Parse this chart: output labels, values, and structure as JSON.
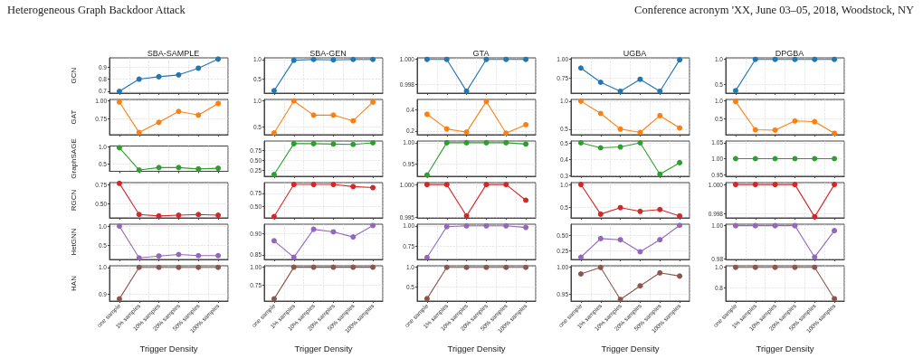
{
  "chart_data": [
    {
      "type": "line",
      "title": "SBA-SAMPLE",
      "ylabel": "GCN",
      "annotations": [
        "Heterogeneous Graph Backdoor Attack",
        "Conference acronym 'XX, June 03–05, 2018, Woodstock, NY"
      ],
      "categories": [
        null,
        null,
        null,
        null,
        null,
        null
      ],
      "series": [
        {
          "color": "#1f77b4",
          "values": [
            0.7,
            0.8,
            0.82,
            0.835,
            0.89,
            0.965
          ]
        }
      ],
      "ylim": [
        0.685,
        0.975
      ],
      "yticks": [
        0.7,
        0.8,
        0.9
      ],
      "grid": true,
      "marker": "circle",
      "tick_labels": "y"
    },
    {
      "type": "line",
      "title": "SBA-GEN",
      "categories": [
        null,
        null,
        null,
        null,
        null,
        null
      ],
      "series": [
        {
          "color": "#1f77b4",
          "values": [
            0.21,
            0.98,
            1.0,
            0.99,
            1.0,
            1.0
          ]
        }
      ],
      "ylim": [
        0.15,
        1.04
      ],
      "yticks": [
        0.5,
        {
          "value": 1,
          "label": "1.0"
        }
      ],
      "grid": true,
      "marker": "circle",
      "tick_labels": "y"
    },
    {
      "type": "line",
      "title": "GTA",
      "categories": [
        null,
        null,
        null,
        null,
        null,
        null
      ],
      "series": [
        {
          "color": "#1f77b4",
          "values": [
            1.0,
            1.0,
            0.99748,
            1.0,
            1.0,
            1.0
          ]
        }
      ],
      "ylim": [
        0.99733,
        1.00012
      ],
      "yticks": [
        0.998,
        {
          "value": 1,
          "label": "1.000"
        }
      ],
      "grid": true,
      "marker": "circle",
      "tick_labels": "y"
    },
    {
      "type": "line",
      "title": "UGBA",
      "categories": [
        null,
        null,
        null,
        null,
        null,
        null
      ],
      "series": [
        {
          "color": "#1f77b4",
          "values": [
            0.88,
            0.69,
            0.57,
            0.73,
            0.57,
            0.99
          ]
        }
      ],
      "ylim": [
        0.545,
        1.016
      ],
      "yticks": [
        0.75,
        {
          "value": 1,
          "label": "1.00"
        }
      ],
      "grid": true,
      "marker": "circle",
      "tick_labels": "y"
    },
    {
      "type": "line",
      "title": "DPGBA",
      "categories": [
        null,
        null,
        null,
        null,
        null,
        null
      ],
      "series": [
        {
          "color": "#1f77b4",
          "values": [
            0.38,
            1.0,
            1.0,
            1.0,
            1.0,
            1.0
          ]
        }
      ],
      "ylim": [
        0.333,
        1.03
      ],
      "yticks": [
        0.5,
        {
          "value": 1,
          "label": "1.0"
        }
      ],
      "grid": true,
      "marker": "circle",
      "tick_labels": "y"
    },
    {
      "type": "line",
      "ylabel": "GAT",
      "categories": [
        null,
        null,
        null,
        null,
        null,
        null
      ],
      "series": [
        {
          "color": "#ff7f0e",
          "values": [
            0.98,
            0.56,
            0.7,
            0.85,
            0.8,
            0.96
          ]
        }
      ],
      "ylim": [
        0.53,
        1.015
      ],
      "yticks": [
        0.75,
        {
          "value": 1,
          "label": "1.00"
        }
      ],
      "grid": true,
      "marker": "circle",
      "tick_labels": "y"
    },
    {
      "type": "line",
      "categories": [
        null,
        null,
        null,
        null,
        null,
        null
      ],
      "series": [
        {
          "color": "#ff7f0e",
          "values": [
            0.39,
            1.0,
            0.73,
            0.73,
            0.62,
            0.98
          ]
        }
      ],
      "ylim": [
        0.355,
        1.03
      ],
      "yticks": [
        0.5,
        {
          "value": 1,
          "label": "1.0"
        }
      ],
      "grid": true,
      "marker": "circle",
      "tick_labels": "y"
    },
    {
      "type": "line",
      "categories": [
        null,
        null,
        null,
        null,
        null,
        null
      ],
      "series": [
        {
          "color": "#ff7f0e",
          "values": [
            0.36,
            0.22,
            0.19,
            0.48,
            0.18,
            0.26
          ]
        }
      ],
      "ylim": [
        0.165,
        0.5
      ],
      "yticks": [
        0.2,
        0.4
      ],
      "grid": true,
      "marker": "circle",
      "tick_labels": "y"
    },
    {
      "type": "line",
      "categories": [
        null,
        null,
        null,
        null,
        null,
        null
      ],
      "series": [
        {
          "color": "#ff7f0e",
          "values": [
            1.0,
            0.78,
            0.5,
            0.44,
            0.74,
            0.52
          ]
        }
      ],
      "ylim": [
        0.4,
        1.03
      ],
      "yticks": [
        0.5,
        {
          "value": 1,
          "label": "1.0"
        }
      ],
      "grid": true,
      "marker": "circle",
      "tick_labels": "y"
    },
    {
      "type": "line",
      "categories": [
        null,
        null,
        null,
        null,
        null,
        null
      ],
      "series": [
        {
          "color": "#ff7f0e",
          "values": [
            0.98,
            0.18,
            0.17,
            0.43,
            0.41,
            0.08
          ]
        }
      ],
      "ylim": [
        0.04,
        1.04
      ],
      "yticks": [
        0.5,
        {
          "value": 1,
          "label": "1.0"
        }
      ],
      "grid": true,
      "marker": "circle",
      "tick_labels": "y"
    },
    {
      "type": "line",
      "ylabel": "GraphSAGE",
      "categories": [
        null,
        null,
        null,
        null,
        null,
        null
      ],
      "series": [
        {
          "color": "#2ca02c",
          "values": [
            0.98,
            0.33,
            0.4,
            0.4,
            0.36,
            0.38
          ]
        }
      ],
      "ylim": [
        0.29,
        1.03
      ],
      "yticks": [
        0.5,
        {
          "value": 1,
          "label": "1.0"
        }
      ],
      "grid": true,
      "marker": "circle",
      "tick_labels": "y"
    },
    {
      "type": "line",
      "categories": [
        null,
        null,
        null,
        null,
        null,
        null
      ],
      "series": [
        {
          "color": "#2ca02c",
          "values": [
            0.15,
            0.92,
            0.92,
            0.91,
            0.9,
            0.94
          ]
        }
      ],
      "ylim": [
        0.106,
        0.985
      ],
      "yticks": [
        {
          "value": 0.25,
          "label": "0.25"
        },
        {
          "value": 0.5,
          "label": "0.50"
        },
        {
          "value": 0.75,
          "label": "0.75"
        }
      ],
      "grid": true,
      "marker": "circle",
      "tick_labels": "y"
    },
    {
      "type": "line",
      "categories": [
        null,
        null,
        null,
        null,
        null,
        null
      ],
      "series": [
        {
          "color": "#2ca02c",
          "values": [
            0.925,
            1.0,
            1.0,
            1.0,
            1.0,
            0.997
          ]
        }
      ],
      "ylim": [
        0.922,
        1.004
      ],
      "yticks": [
        0.95,
        {
          "value": 1,
          "label": "1.00"
        }
      ],
      "grid": true,
      "marker": "circle",
      "tick_labels": "y"
    },
    {
      "type": "line",
      "categories": [
        null,
        null,
        null,
        null,
        null,
        null
      ],
      "series": [
        {
          "color": "#2ca02c",
          "values": [
            0.5,
            0.47,
            0.475,
            0.5,
            0.31,
            0.38
          ]
        }
      ],
      "ylim": [
        0.298,
        0.511
      ],
      "yticks": [
        0.3,
        0.4,
        0.5
      ],
      "grid": true,
      "marker": "circle",
      "tick_labels": "y"
    },
    {
      "type": "line",
      "categories": [
        null,
        null,
        null,
        null,
        null,
        null
      ],
      "series": [
        {
          "color": "#2ca02c",
          "values": [
            1.0,
            1.0,
            1.0,
            1.0,
            1.0,
            1.0
          ]
        }
      ],
      "ylim": [
        0.945,
        1.055
      ],
      "yticks": [
        0.95,
        {
          "value": 1,
          "label": "1.00"
        },
        1.05
      ],
      "grid": true,
      "marker": "circle",
      "tick_labels": "y"
    },
    {
      "type": "line",
      "ylabel": "RGCN",
      "categories": [
        null,
        null,
        null,
        null,
        null,
        null
      ],
      "series": [
        {
          "color": "#d62728",
          "values": [
            0.77,
            0.36,
            0.34,
            0.35,
            0.36,
            0.35
          ]
        }
      ],
      "ylim": [
        0.315,
        0.78
      ],
      "yticks": [
        {
          "value": 0.5,
          "label": "0.50"
        },
        0.75
      ],
      "grid": true,
      "marker": "circle",
      "tick_labels": "y"
    },
    {
      "type": "line",
      "categories": [
        null,
        null,
        null,
        null,
        null,
        null
      ],
      "series": [
        {
          "color": "#d62728",
          "values": [
            0.31,
            0.92,
            0.92,
            0.92,
            0.88,
            0.86
          ]
        }
      ],
      "ylim": [
        0.285,
        0.955
      ],
      "yticks": [
        {
          "value": 0.5,
          "label": "0.50"
        },
        0.75
      ],
      "grid": true,
      "marker": "circle",
      "tick_labels": "y"
    },
    {
      "type": "line",
      "categories": [
        null,
        null,
        null,
        null,
        null,
        null
      ],
      "series": [
        {
          "color": "#d62728",
          "values": [
            1.0,
            1.0,
            0.9952,
            1.0,
            1.0,
            0.9976
          ]
        }
      ],
      "ylim": [
        0.9949,
        1.0003
      ],
      "yticks": [
        0.995,
        {
          "value": 1,
          "label": "1.000"
        }
      ],
      "grid": true,
      "marker": "circle",
      "tick_labels": "y"
    },
    {
      "type": "line",
      "categories": [
        null,
        null,
        null,
        null,
        null,
        null
      ],
      "series": [
        {
          "color": "#d62728",
          "values": [
            1.0,
            0.36,
            0.5,
            0.42,
            0.46,
            0.32
          ]
        }
      ],
      "ylim": [
        0.28,
        1.04
      ],
      "yticks": [
        0.5,
        {
          "value": 1,
          "label": "1.0"
        }
      ],
      "grid": true,
      "marker": "circle",
      "tick_labels": "y"
    },
    {
      "type": "line",
      "categories": [
        null,
        null,
        null,
        null,
        null,
        null
      ],
      "series": [
        {
          "color": "#d62728",
          "values": [
            1.0,
            1.0,
            1.0,
            1.0,
            0.9978,
            1.0
          ]
        }
      ],
      "ylim": [
        0.99773,
        1.00013
      ],
      "yticks": [
        0.998,
        {
          "value": 1,
          "label": "1.000"
        }
      ],
      "grid": true,
      "marker": "circle",
      "tick_labels": "y"
    },
    {
      "type": "line",
      "ylabel": "HetGNN",
      "categories": [
        null,
        null,
        null,
        null,
        null,
        null
      ],
      "series": [
        {
          "color": "#9467bd",
          "values": [
            1.0,
            0.17,
            0.22,
            0.26,
            0.23,
            0.23
          ]
        }
      ],
      "ylim": [
        0.13,
        1.05
      ],
      "yticks": [
        0.5,
        {
          "value": 1,
          "label": "1.0"
        }
      ],
      "grid": true,
      "marker": "circle",
      "tick_labels": "y"
    },
    {
      "type": "line",
      "categories": [
        null,
        null,
        null,
        null,
        null,
        null
      ],
      "series": [
        {
          "color": "#9467bd",
          "values": [
            0.883,
            0.844,
            0.91,
            0.904,
            0.892,
            0.919
          ]
        }
      ],
      "ylim": [
        0.839,
        0.922
      ],
      "yticks": [
        0.85,
        {
          "value": 0.9,
          "label": "0.90"
        }
      ],
      "grid": true,
      "marker": "circle",
      "tick_labels": "y"
    },
    {
      "type": "line",
      "categories": [
        null,
        null,
        null,
        null,
        null,
        null
      ],
      "series": [
        {
          "color": "#9467bd",
          "values": [
            0.61,
            0.99,
            1.0,
            1.0,
            1.0,
            0.98
          ]
        }
      ],
      "ylim": [
        0.585,
        1.02
      ],
      "yticks": [
        0.75,
        {
          "value": 1,
          "label": "1.00"
        }
      ],
      "grid": true,
      "marker": "circle",
      "tick_labels": "y"
    },
    {
      "type": "line",
      "categories": [
        null,
        null,
        null,
        null,
        null,
        null
      ],
      "series": [
        {
          "color": "#9467bd",
          "values": [
            0.14,
            0.45,
            0.43,
            0.23,
            0.43,
            0.67
          ]
        }
      ],
      "ylim": [
        0.102,
        0.689
      ],
      "yticks": [
        0.25,
        {
          "value": 0.5,
          "label": "0.50"
        }
      ],
      "grid": true,
      "marker": "circle",
      "tick_labels": "y"
    },
    {
      "type": "line",
      "categories": [
        null,
        null,
        null,
        null,
        null,
        null
      ],
      "series": [
        {
          "color": "#9467bd",
          "values": [
            1.0,
            1.0,
            1.0,
            1.0,
            0.981,
            0.997
          ]
        }
      ],
      "ylim": [
        0.9796,
        1.0009
      ],
      "yticks": [
        0.98,
        {
          "value": 1,
          "label": "1.00"
        }
      ],
      "grid": true,
      "marker": "circle",
      "tick_labels": "y"
    },
    {
      "type": "line",
      "ylabel": "HAN",
      "xlabel": "Trigger Density",
      "categories": [
        "one sample",
        "1% samples",
        "10% samples",
        "20% samples",
        "50% samples",
        "100% samples"
      ],
      "series": [
        {
          "color": "#8c564b",
          "values": [
            0.882,
            1.0,
            1.0,
            1.0,
            1.0,
            1.0
          ]
        }
      ],
      "ylim": [
        0.874,
        1.006
      ],
      "yticks": [
        0.9,
        {
          "value": 1,
          "label": "1.0"
        }
      ],
      "grid": true,
      "marker": "circle"
    },
    {
      "type": "line",
      "xlabel": "Trigger Density",
      "categories": [
        "one sample",
        "1% samples",
        "10% samples",
        "20% samples",
        "50% samples",
        "100% samples"
      ],
      "series": [
        {
          "color": "#8c564b",
          "values": [
            0.56,
            1.0,
            1.0,
            1.0,
            1.0,
            1.0
          ]
        }
      ],
      "ylim": [
        0.53,
        1.02
      ],
      "yticks": [
        0.75,
        {
          "value": 1,
          "label": "1.00"
        }
      ],
      "grid": true,
      "marker": "circle"
    },
    {
      "type": "line",
      "xlabel": "Trigger Density",
      "categories": [
        "one sample",
        "1% samples",
        "10% samples",
        "20% samples",
        "50% samples",
        "100% samples"
      ],
      "series": [
        {
          "color": "#8c564b",
          "values": [
            0.2,
            1.0,
            1.0,
            1.0,
            1.0,
            1.0
          ]
        }
      ],
      "ylim": [
        0.14,
        1.04
      ],
      "yticks": [
        0.5,
        {
          "value": 1,
          "label": "1.0"
        }
      ],
      "grid": true,
      "marker": "circle"
    },
    {
      "type": "line",
      "xlabel": "Trigger Density",
      "categories": [
        "one sample",
        "1% samples",
        "10% samples",
        "20% samples",
        "50% samples",
        "100% samples"
      ],
      "series": [
        {
          "color": "#8c564b",
          "values": [
            0.987,
            0.999,
            0.94,
            0.965,
            0.989,
            0.983
          ]
        }
      ],
      "ylim": [
        0.937,
        1.002
      ],
      "yticks": [
        0.95,
        {
          "value": 1,
          "label": "1.00"
        }
      ],
      "grid": true,
      "marker": "circle"
    },
    {
      "type": "line",
      "xlabel": "Trigger Density",
      "categories": [
        "one sample",
        "1% samples",
        "10% samples",
        "20% samples",
        "50% samples",
        "100% samples"
      ],
      "series": [
        {
          "color": "#8c564b",
          "values": [
            1.0,
            1.0,
            1.0,
            1.0,
            1.0,
            0.69
          ]
        }
      ],
      "ylim": [
        0.667,
        1.015
      ],
      "yticks": [
        0.8,
        {
          "value": 1,
          "label": "1.0"
        }
      ],
      "grid": true,
      "marker": "circle"
    }
  ]
}
